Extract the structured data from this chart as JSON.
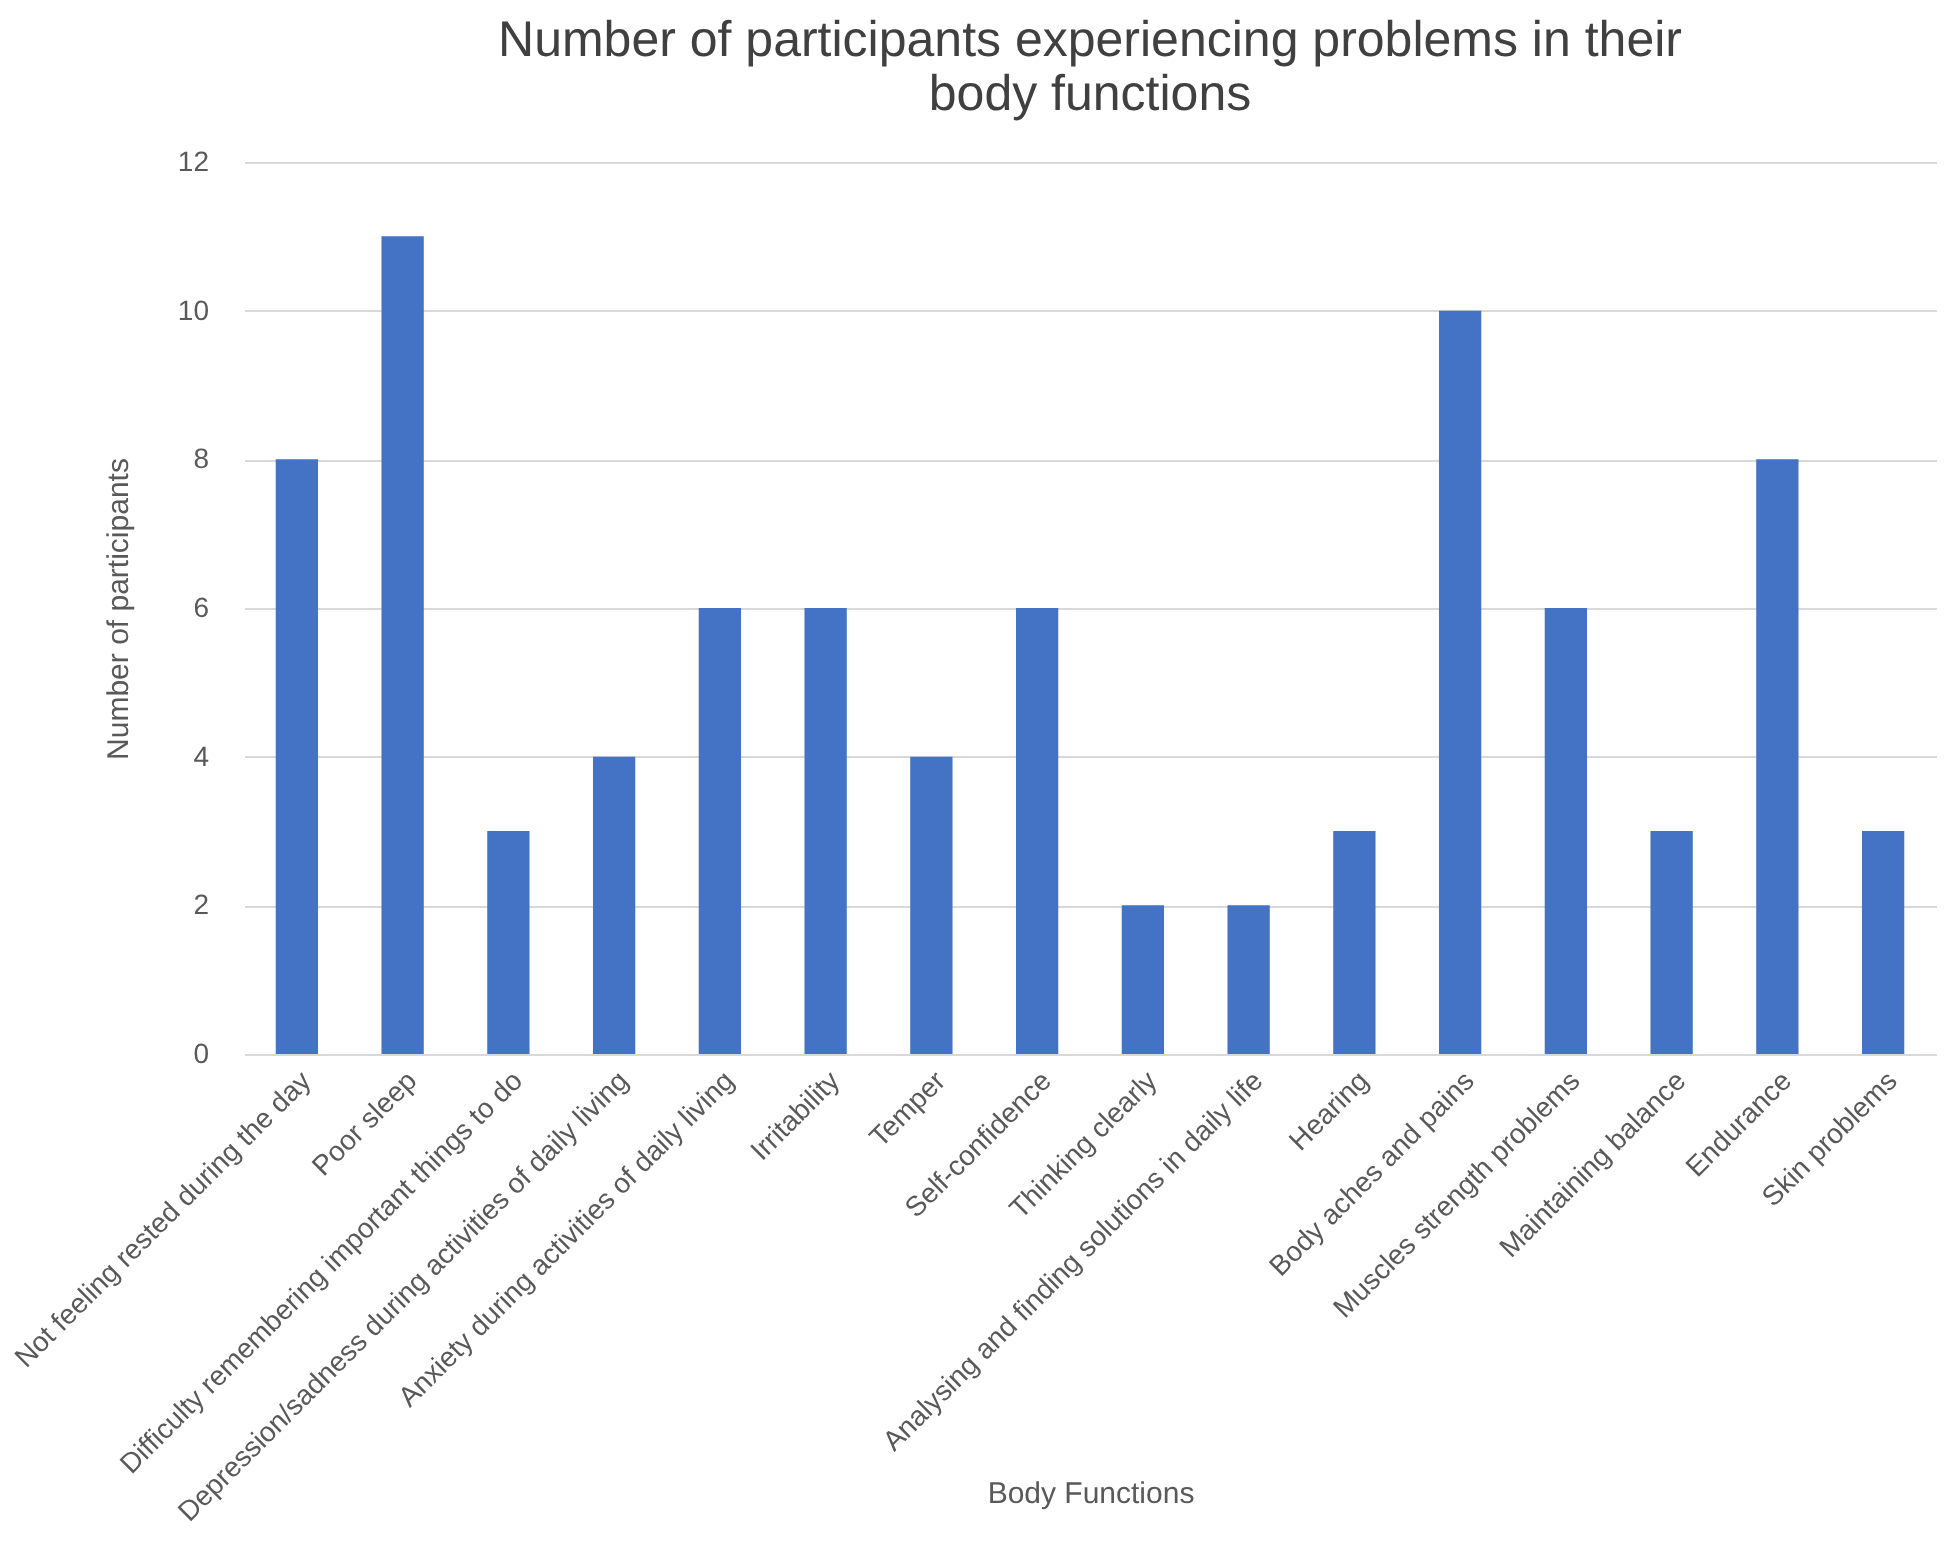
{
  "chart_data": {
    "type": "bar",
    "title": "Number of participants experiencing problems in their body functions",
    "xlabel": "Body Functions",
    "ylabel": "Number of participants",
    "categories": [
      "Not feeling rested during the day",
      "Poor sleep",
      "Difficulty remembering important things to do",
      "Depression/sadness during activities of daily living",
      "Anxiety during activities of daily living",
      "Irritability",
      "Temper",
      "Self-confidence",
      "Thinking clearly",
      "Analysing and finding solutions in daily life",
      "Hearing",
      "Body aches and pains",
      "Muscles strength problems",
      "Maintaining balance",
      "Endurance",
      "Skin problems"
    ],
    "values": [
      8,
      11,
      3,
      4,
      6,
      6,
      4,
      6,
      2,
      2,
      3,
      10,
      6,
      3,
      8,
      3
    ],
    "color": "#4472c4",
    "ylim": [
      0,
      12
    ],
    "yticks": [
      0,
      2,
      4,
      6,
      8,
      10,
      12
    ],
    "grid": "y"
  }
}
